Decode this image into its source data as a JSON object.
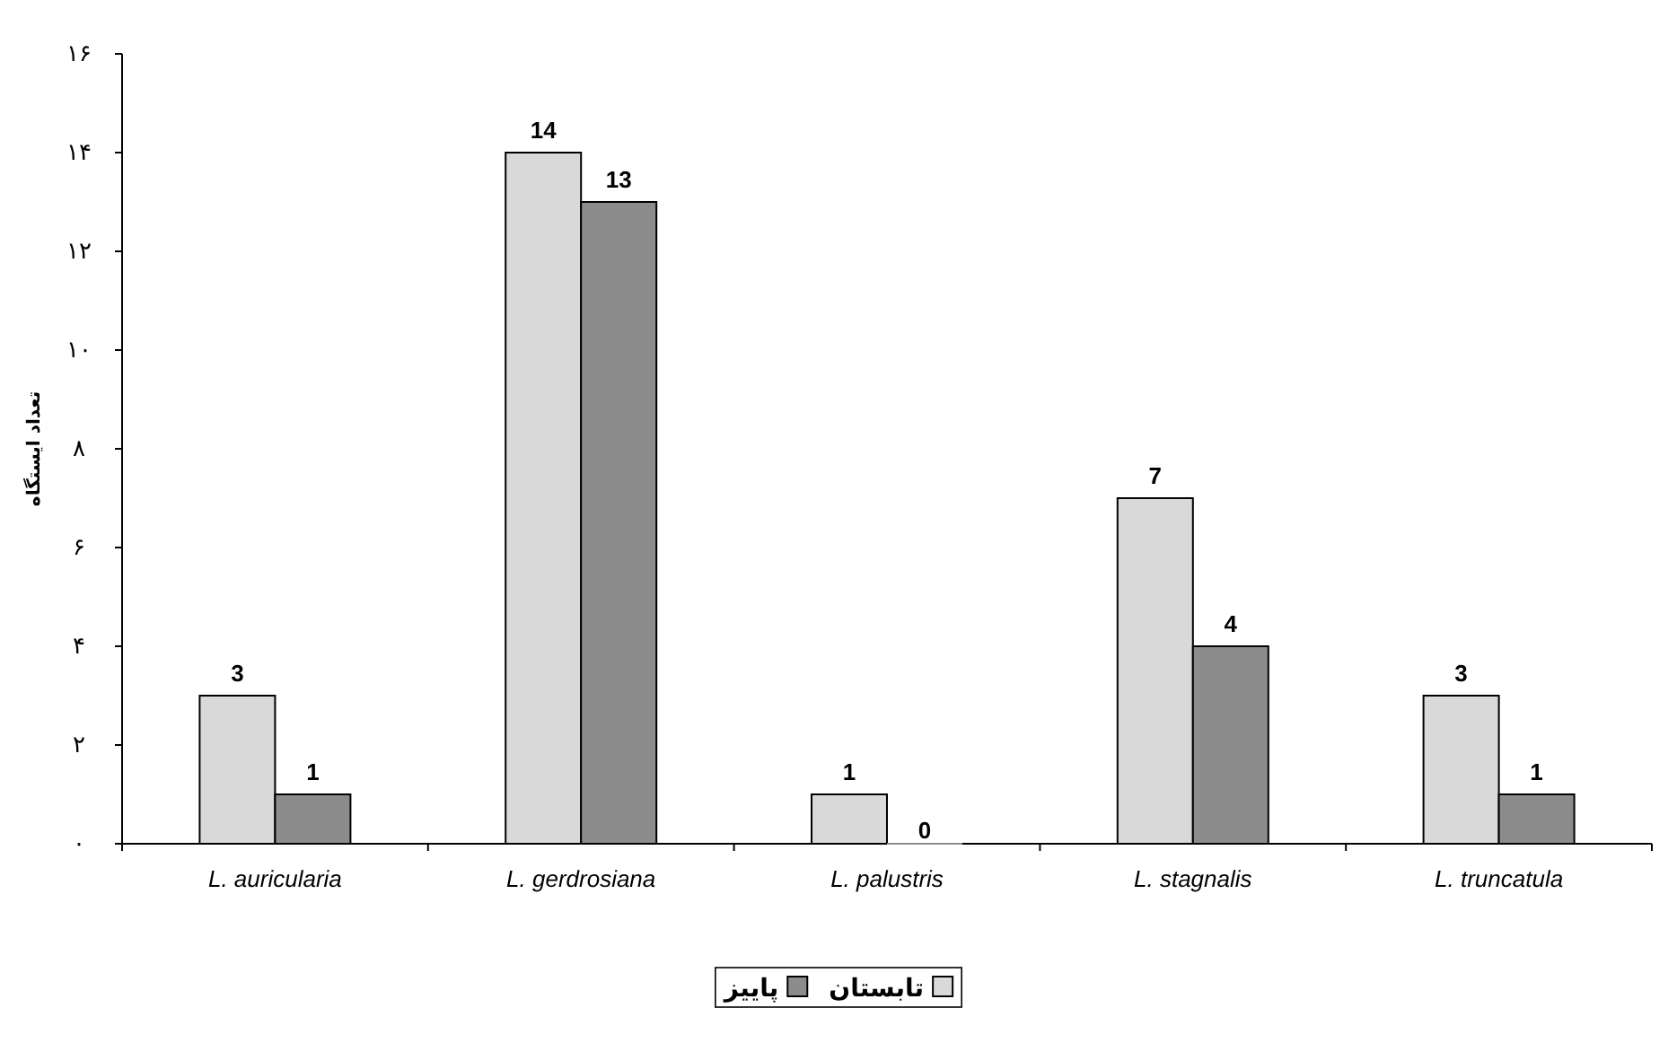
{
  "chart_data": {
    "type": "bar",
    "categories": [
      "L. auricularia",
      "L. gerdrosiana",
      "L. palustris",
      "L. stagnalis",
      "L. truncatula"
    ],
    "series": [
      {
        "name": "تابستان",
        "color": "#d9d9d9",
        "values": [
          3,
          14,
          1,
          7,
          3
        ]
      },
      {
        "name": "پاییز",
        "color": "#8c8c8c",
        "values": [
          1,
          13,
          0,
          4,
          1
        ]
      }
    ],
    "ylabel": "تعداد ایستگاه",
    "ylim": [
      0,
      16
    ],
    "yticks": [
      {
        "value": 0,
        "label": "۰"
      },
      {
        "value": 2,
        "label": "۲"
      },
      {
        "value": 4,
        "label": "۴"
      },
      {
        "value": 6,
        "label": "۶"
      },
      {
        "value": 8,
        "label": "۸"
      },
      {
        "value": 10,
        "label": "۱۰"
      },
      {
        "value": 12,
        "label": "۱۲"
      },
      {
        "value": 14,
        "label": "۱۴"
      },
      {
        "value": 16,
        "label": "۱۶"
      }
    ],
    "data_labels": true,
    "legend": "bottom",
    "grid": false
  }
}
